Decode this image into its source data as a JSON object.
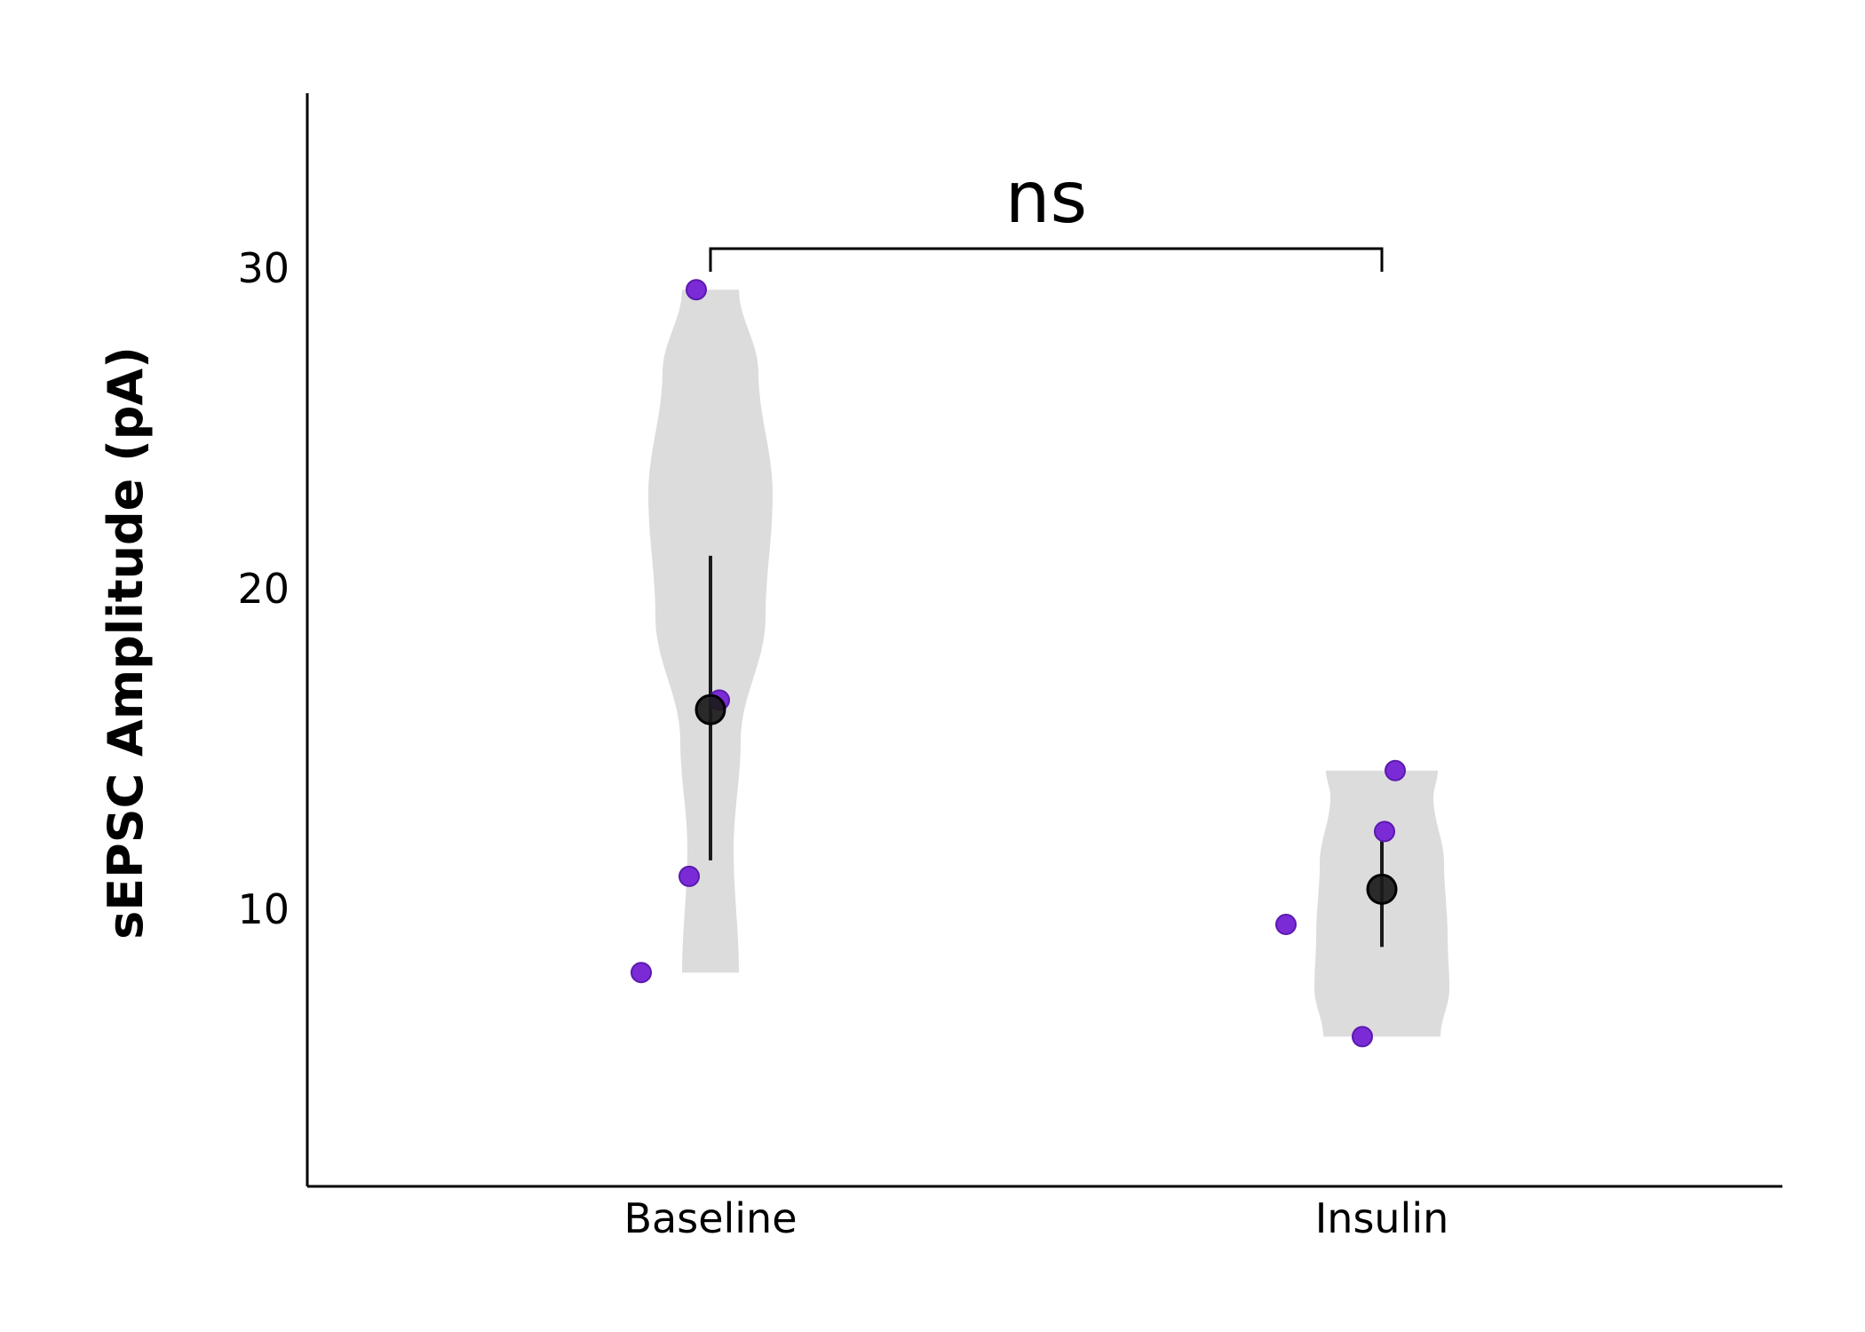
{
  "chart_data": {
    "type": "violin",
    "ylabel": "sEPSC Amplitude (pA)",
    "xlabel": "",
    "categories": [
      "Baseline",
      "Insulin"
    ],
    "yticks": [
      10,
      20,
      30
    ],
    "ylim": [
      1.5,
      35.5
    ],
    "groups": [
      {
        "name": "Baseline",
        "points": [
          29.3,
          16.5,
          11.0,
          8.0
        ],
        "mean": 16.2,
        "error": [
          11.5,
          21.0
        ],
        "violin_range": [
          8.0,
          29.3
        ]
      },
      {
        "name": "Insulin",
        "points": [
          14.3,
          12.4,
          9.5,
          6.0
        ],
        "mean": 10.6,
        "error": [
          8.8,
          12.3
        ],
        "violin_range": [
          6.0,
          14.3
        ]
      }
    ],
    "annotation": {
      "label": "ns",
      "between": [
        "Baseline",
        "Insulin"
      ]
    },
    "colors": {
      "points": "#7b2bd6",
      "points_edge": "#5b1aae",
      "violin": "#dcdcdc",
      "mean": "#1a1a1a"
    }
  }
}
